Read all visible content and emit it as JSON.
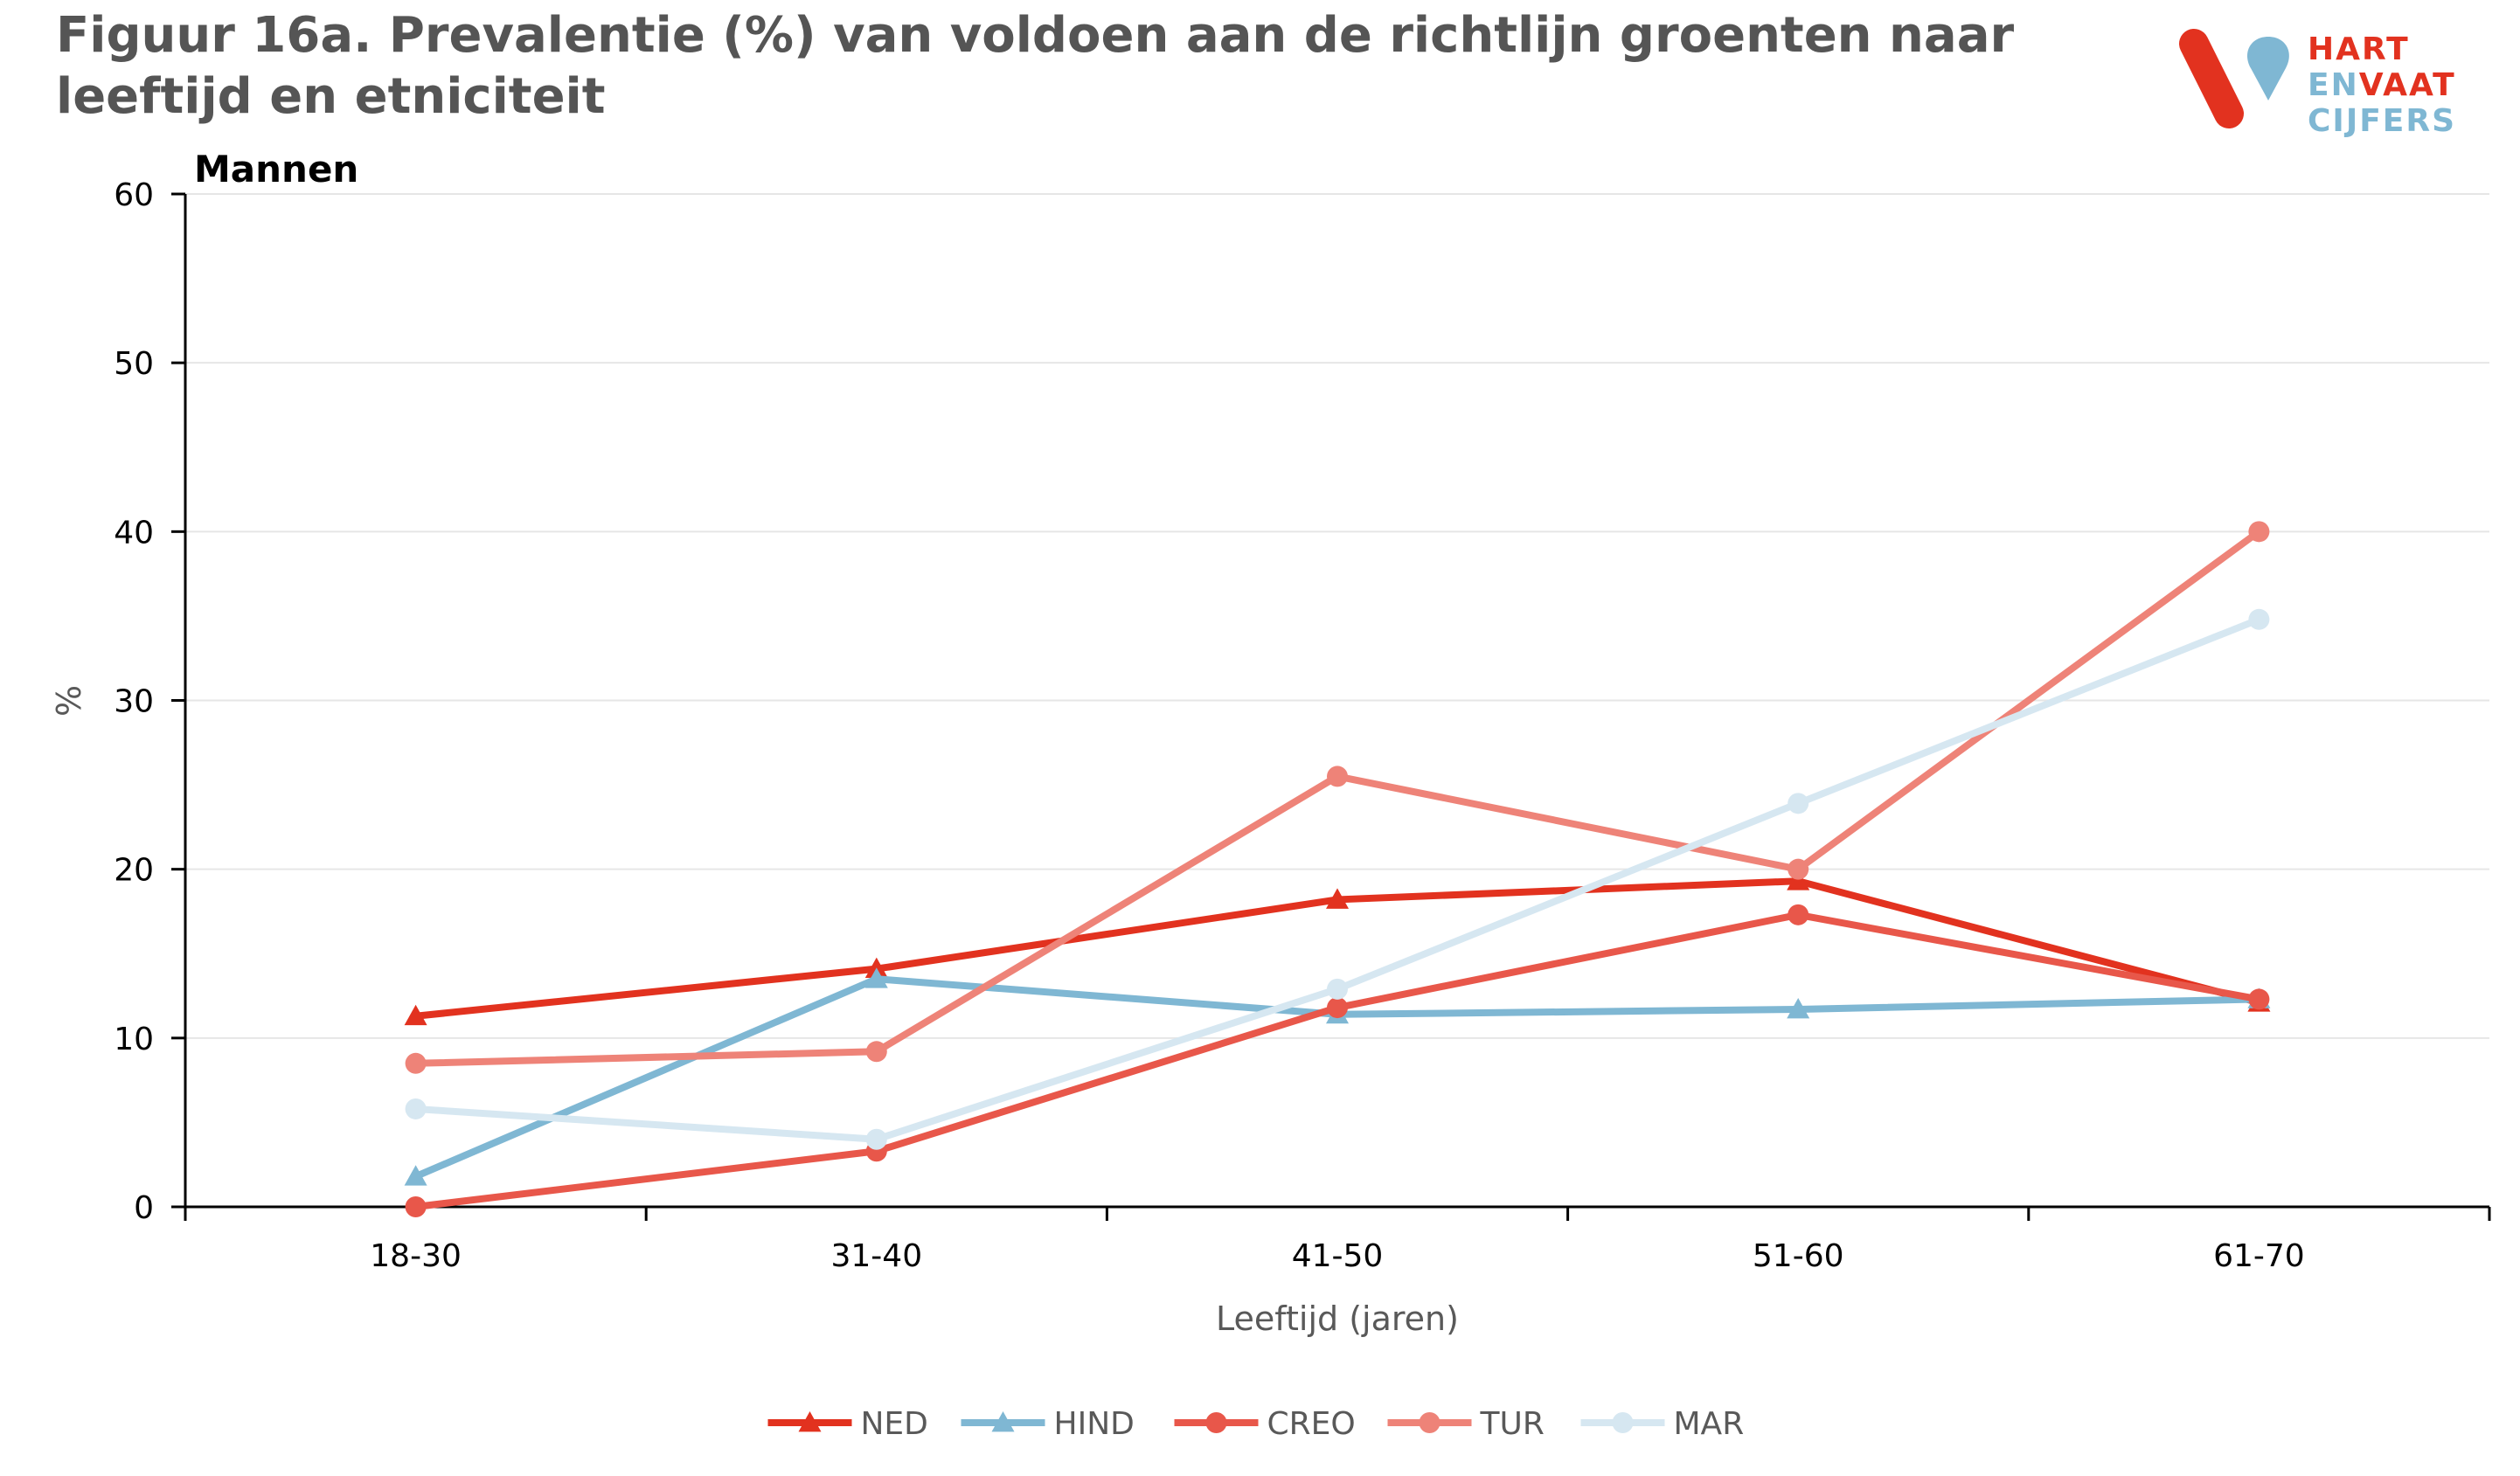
{
  "title": "Figuur 16a. Prevalentie (%) van  voldoen aan de richtlijn groenten naar leeftijd en etniciteit",
  "logo": {
    "line1": "HART",
    "line2_part1": "EN",
    "line2_part2": "VAAT",
    "line3": "CIJFERS",
    "colors": {
      "red": "#e2321f",
      "blue": "#7fb7d3"
    }
  },
  "chart_data": {
    "type": "line",
    "panel_label": "Mannen",
    "categories": [
      "18-30",
      "31-40",
      "41-50",
      "51-60",
      "61-70"
    ],
    "xlabel": "Leeftijd (jaren)",
    "ylabel": "%",
    "ylim": [
      0,
      60
    ],
    "yticks": [
      0,
      10,
      20,
      30,
      40,
      50,
      60
    ],
    "grid": true,
    "legend_position": "bottom",
    "series": [
      {
        "name": "NED",
        "color": "#e2321f",
        "marker": "triangle",
        "values": [
          11.3,
          14.1,
          18.2,
          19.3,
          12.1
        ]
      },
      {
        "name": "HIND",
        "color": "#7fb7d3",
        "marker": "triangle",
        "values": [
          1.8,
          13.5,
          11.4,
          11.7,
          12.3
        ]
      },
      {
        "name": "CREO",
        "color": "#e8574a",
        "marker": "circle",
        "values": [
          0.0,
          3.3,
          11.8,
          17.3,
          12.3
        ]
      },
      {
        "name": "TUR",
        "color": "#ee8378",
        "marker": "circle",
        "values": [
          8.5,
          9.2,
          25.5,
          20.0,
          40.0
        ]
      },
      {
        "name": "MAR",
        "color": "#d6e7f1",
        "marker": "circle",
        "values": [
          5.8,
          4.0,
          12.9,
          23.9,
          34.8
        ]
      }
    ]
  }
}
